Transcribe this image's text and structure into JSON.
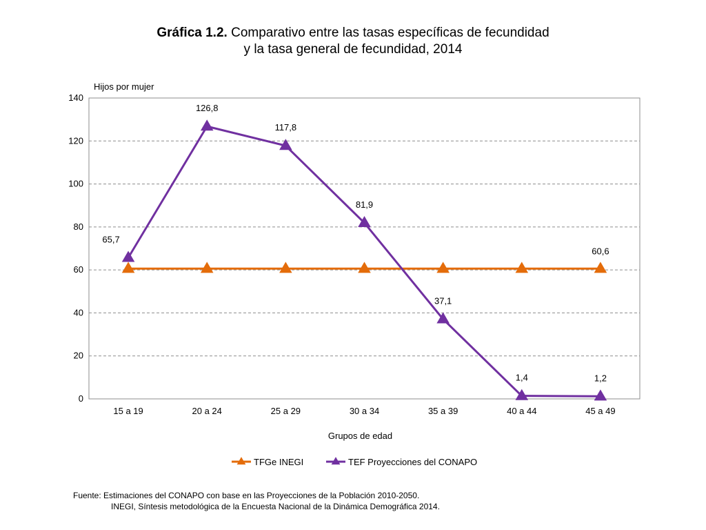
{
  "title": {
    "prefix": "Gráfica 1.2.",
    "line1": "Comparativo entre las tasas específicas de fecundidad",
    "line2": "y la tasa general de fecundidad, 2014"
  },
  "source": {
    "line1": "Fuente:  Estimaciones del CONAPO con base en las Proyecciones de la Población 2010-2050.",
    "line2": "INEGI, Síntesis metodológica de la Encuesta Nacional de la Dinámica Demográfica 2014."
  },
  "chart_data": {
    "type": "line",
    "title": "Gráfica 1.2. Comparativo entre las tasas específicas de fecundidad y la tasa general de fecundidad, 2014",
    "xlabel": "Grupos de edad",
    "ylabel": "Hijos por mujer",
    "ylim": [
      0,
      140
    ],
    "yticks": [
      0,
      20,
      40,
      60,
      80,
      100,
      120,
      140
    ],
    "grid": "horizontal dashed",
    "legend": "bottom",
    "categories": [
      "15 a 19",
      "20 a 24",
      "25 a 29",
      "30 a 34",
      "35 a 39",
      "40 a 44",
      "45 a 49"
    ],
    "series": [
      {
        "name": "TFGe INEGI",
        "color": "#E46C0A",
        "marker": "triangle",
        "values": [
          60.6,
          60.6,
          60.6,
          60.6,
          60.6,
          60.6,
          60.6
        ],
        "labels": [
          "",
          "",
          "",
          "",
          "",
          "",
          "60,6"
        ]
      },
      {
        "name": "TEF Proyecciones del CONAPO",
        "color": "#7030A0",
        "marker": "triangle",
        "values": [
          65.7,
          126.8,
          117.8,
          81.9,
          37.1,
          1.4,
          1.2
        ],
        "labels": [
          "65,7",
          "126,8",
          "117,8",
          "81,9",
          "37,1",
          "1,4",
          "1,2"
        ]
      }
    ]
  }
}
